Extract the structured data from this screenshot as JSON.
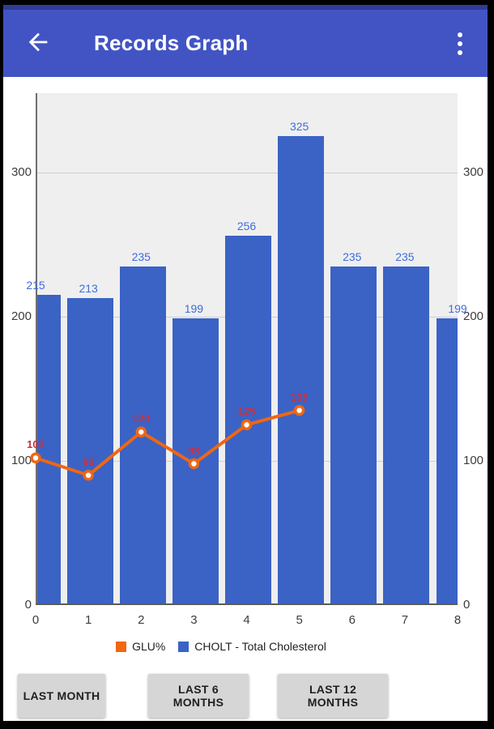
{
  "app_bar": {
    "title": "Records Graph",
    "back_icon": "arrow-left",
    "menu_icon": "vertical-ellipsis",
    "color": "#4254C4",
    "status_bar_color": "#2F3C96"
  },
  "chart_data": {
    "type": "bar",
    "categories": [
      0,
      1,
      2,
      3,
      4,
      5,
      6,
      7,
      8
    ],
    "series": [
      {
        "name": "CHOLT - Total Cholesterol",
        "type": "bar",
        "color": "#3B63C5",
        "label_color": "#3E6CDE",
        "values": [
          215,
          213,
          235,
          199,
          256,
          325,
          235,
          235,
          199
        ]
      },
      {
        "name": "GLU%",
        "type": "line",
        "color": "#F06613",
        "label_color": "#C43247",
        "marker": "circle-open",
        "values": [
          102,
          90,
          120,
          98,
          125,
          135
        ]
      }
    ],
    "y_ticks": [
      0,
      100,
      200,
      300
    ],
    "ylim": [
      0,
      355
    ],
    "xlim": [
      0,
      8
    ],
    "grid": true,
    "plot_bg": "#EFEFEF",
    "y_axis_sides": "both",
    "legend_position": "bottom",
    "title": "",
    "xlabel": "",
    "ylabel": ""
  },
  "legend": {
    "items": [
      {
        "label": "GLU%",
        "color": "#F06613"
      },
      {
        "label": "CHOLT - Total Cholesterol",
        "color": "#3B63C5"
      }
    ]
  },
  "buttons": [
    {
      "label": "LAST MONTH"
    },
    {
      "label": "LAST 6 MONTHS"
    },
    {
      "label": "LAST 12 MONTHS"
    }
  ]
}
